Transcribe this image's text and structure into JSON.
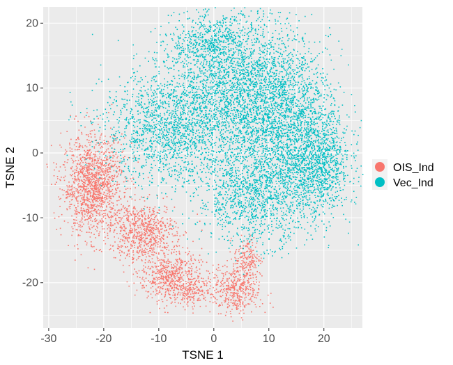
{
  "chart_data": {
    "type": "scatter",
    "xlabel": "TSNE 1",
    "ylabel": "TSNE 2",
    "xlim": [
      -31,
      27
    ],
    "ylim": [
      -27,
      22.5
    ],
    "x_ticks": [
      -30,
      -20,
      -10,
      0,
      10,
      20
    ],
    "y_ticks": [
      -20,
      -10,
      0,
      10,
      20
    ],
    "x_tick_labels": [
      "-30",
      "-20",
      "-10",
      "0",
      "10",
      "20"
    ],
    "y_tick_labels": [
      "-20",
      "-10",
      "0",
      "10",
      "20"
    ],
    "grid": true,
    "panel_background": "#ebebeb",
    "legend_position": "right",
    "series": [
      {
        "name": "OIS_Ind",
        "color": "#f8766d",
        "clusters": [
          {
            "center": [
              -22.0,
              -5.0
            ],
            "spread": [
              2.8,
              3.8
            ],
            "count": 1400
          },
          {
            "center": [
              -13.0,
              -12.0
            ],
            "spread": [
              3.0,
              2.2
            ],
            "count": 700
          },
          {
            "center": [
              -8.0,
              -19.0
            ],
            "spread": [
              2.8,
              2.0
            ],
            "count": 600
          },
          {
            "center": [
              -4.0,
              -21.0
            ],
            "spread": [
              1.5,
              1.2
            ],
            "count": 150
          },
          {
            "center": [
              4.0,
              -21.0
            ],
            "spread": [
              2.2,
              2.0
            ],
            "count": 450
          },
          {
            "center": [
              6.0,
              -16.0
            ],
            "spread": [
              1.2,
              1.6
            ],
            "count": 150
          }
        ]
      },
      {
        "name": "Vec_Ind",
        "color": "#00bfc4",
        "clusters": [
          {
            "center": [
              5.0,
              10.0
            ],
            "spread": [
              6.5,
              6.0
            ],
            "count": 2600
          },
          {
            "center": [
              -8.0,
              4.0
            ],
            "spread": [
              6.0,
              4.5
            ],
            "count": 1600
          },
          {
            "center": [
              13.0,
              3.0
            ],
            "spread": [
              5.0,
              6.0
            ],
            "count": 1800
          },
          {
            "center": [
              19.0,
              -2.0
            ],
            "spread": [
              2.8,
              4.0
            ],
            "count": 900
          },
          {
            "center": [
              7.0,
              -7.0
            ],
            "spread": [
              5.0,
              3.5
            ],
            "count": 1000
          },
          {
            "center": [
              -1.0,
              17.0
            ],
            "spread": [
              3.5,
              2.0
            ],
            "count": 400
          }
        ]
      }
    ]
  }
}
